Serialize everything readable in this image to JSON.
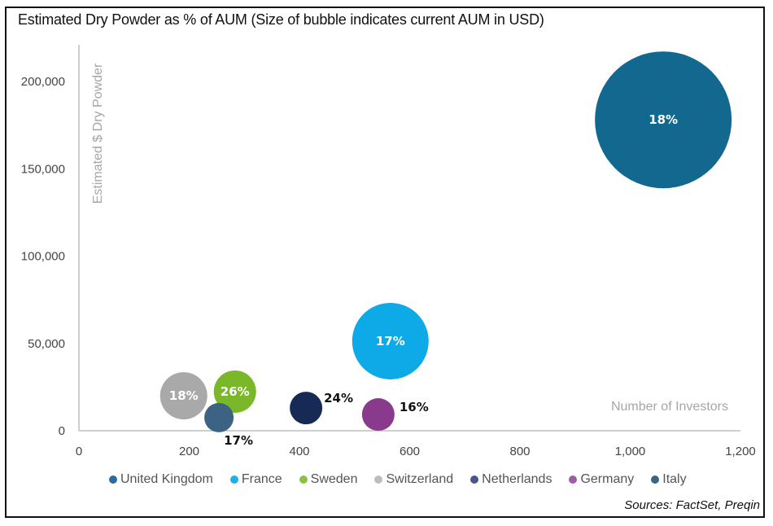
{
  "chart_data": {
    "type": "bubble",
    "title": "Estimated Dry Powder as % of AUM (Size of bubble indicates current AUM in USD)",
    "xlabel": "Number of Investors",
    "ylabel": "Estimated $ Dry Powder",
    "xlim": [
      0,
      1200
    ],
    "ylim": [
      0,
      220000
    ],
    "x_ticks": [
      "0",
      "200",
      "400",
      "600",
      "800",
      "1,000",
      "1,200"
    ],
    "x_tick_values": [
      0,
      200,
      400,
      600,
      800,
      1000,
      1200
    ],
    "y_ticks": [
      "0",
      "50,000",
      "100,000",
      "150,000",
      "200,000"
    ],
    "y_tick_values": [
      0,
      50000,
      100000,
      150000,
      200000
    ],
    "grid": false,
    "legend_position": "bottom",
    "series": [
      {
        "name": "United Kingdom",
        "x": 1060,
        "y": 178000,
        "size": 84,
        "label": "18%",
        "label_pos": "center",
        "color": "#13688f",
        "legend_color": "#2c6aa0"
      },
      {
        "name": "France",
        "x": 565,
        "y": 51300,
        "size": 47,
        "label": "17%",
        "label_pos": "center",
        "color": "#0eaae8",
        "legend_color": "#1fb0ec"
      },
      {
        "name": "Sweden",
        "x": 283,
        "y": 22400,
        "size": 26,
        "label": "26%",
        "label_pos": "center",
        "color": "#7ab829",
        "legend_color": "#8bc043"
      },
      {
        "name": "Switzerland",
        "x": 190,
        "y": 20000,
        "size": 29,
        "label": "18%",
        "label_pos": "center",
        "color": "#a9a9a9",
        "legend_color": "#bdbdbd"
      },
      {
        "name": "Netherlands",
        "x": 412,
        "y": 13000,
        "size": 20,
        "label": "24%",
        "label_pos": "right-top",
        "color": "#172a55",
        "legend_color": "#4a5589"
      },
      {
        "name": "Germany",
        "x": 543,
        "y": 9300,
        "size": 20,
        "label": "16%",
        "label_pos": "right",
        "color": "#8a3a8c",
        "legend_color": "#a25aa8"
      },
      {
        "name": "Italy",
        "x": 254,
        "y": 7500,
        "size": 18,
        "label": "17%",
        "label_pos": "below-right",
        "color": "#3d6384",
        "legend_color": "#3d6384"
      }
    ]
  },
  "title": "Estimated Dry Powder as % of AUM (Size of bubble indicates current AUM in USD)",
  "sources": "Sources: FactSet, Preqin",
  "legend": [
    {
      "label": "United Kingdom",
      "color": "#2c6aa0"
    },
    {
      "label": "France",
      "color": "#1fb0ec"
    },
    {
      "label": "Sweden",
      "color": "#8bc043"
    },
    {
      "label": "Switzerland",
      "color": "#bdbdbd"
    },
    {
      "label": "Netherlands",
      "color": "#4a5589"
    },
    {
      "label": "Germany",
      "color": "#a25aa8"
    },
    {
      "label": "Italy",
      "color": "#3d6384"
    }
  ]
}
